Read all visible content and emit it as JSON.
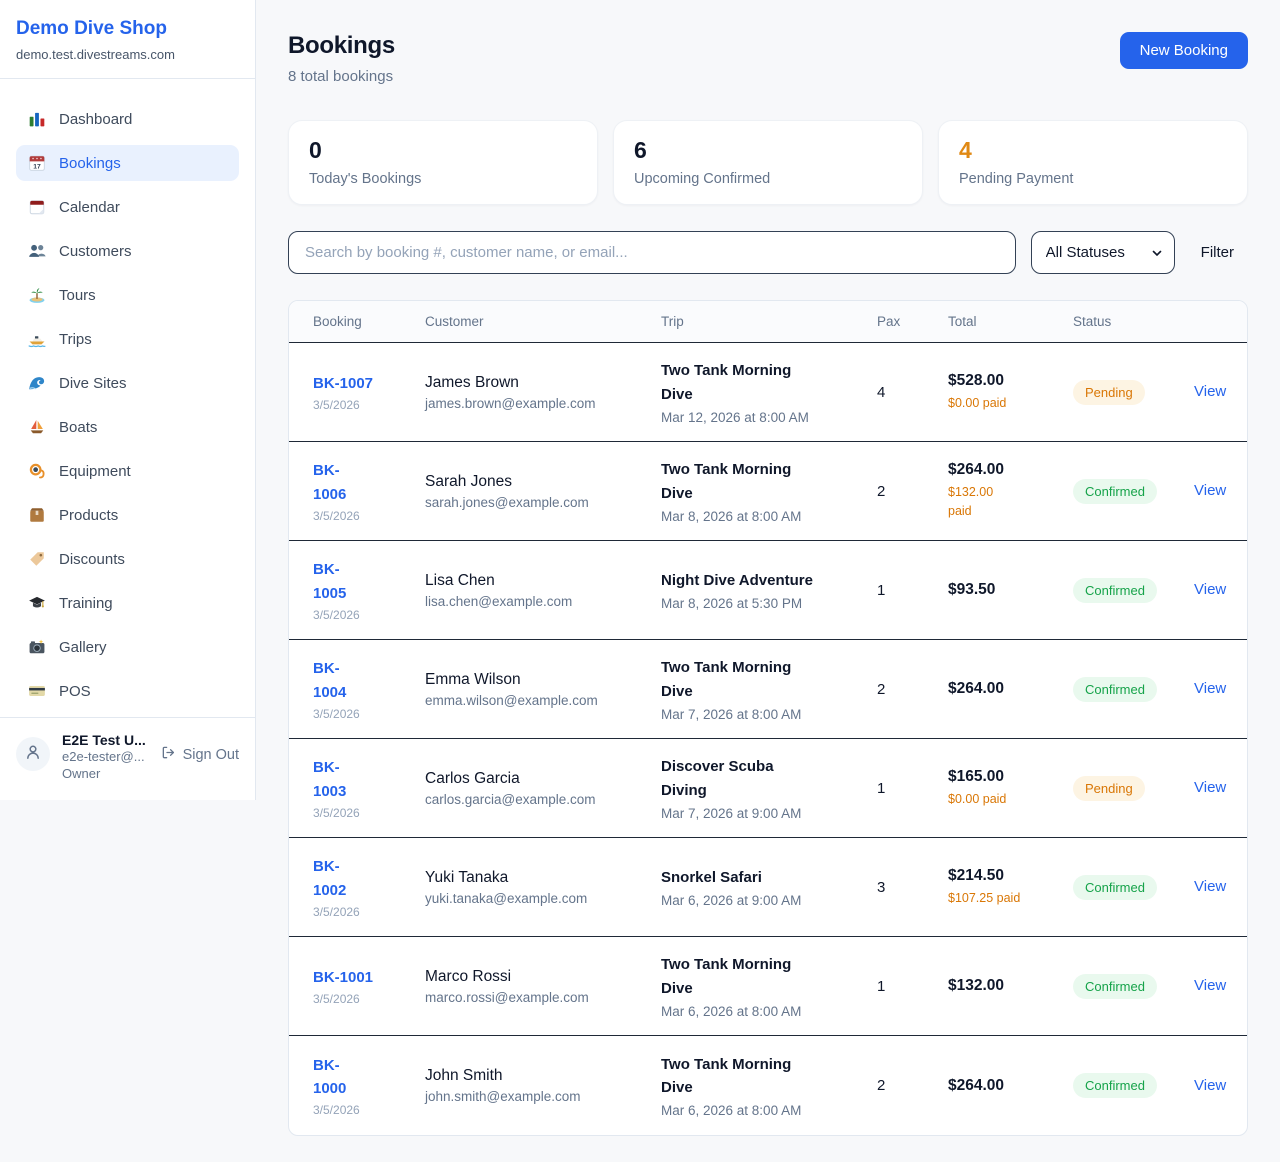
{
  "sidebar": {
    "brand": "Demo Dive Shop",
    "domain": "demo.test.divestreams.com",
    "items": [
      {
        "label": "Dashboard",
        "icon": "dashboard-icon",
        "active": false
      },
      {
        "label": "Bookings",
        "icon": "bookings-icon",
        "active": true
      },
      {
        "label": "Calendar",
        "icon": "calendar-icon",
        "active": false
      },
      {
        "label": "Customers",
        "icon": "customers-icon",
        "active": false
      },
      {
        "label": "Tours",
        "icon": "tours-icon",
        "active": false
      },
      {
        "label": "Trips",
        "icon": "trips-icon",
        "active": false
      },
      {
        "label": "Dive Sites",
        "icon": "dive-sites-icon",
        "active": false
      },
      {
        "label": "Boats",
        "icon": "boats-icon",
        "active": false
      },
      {
        "label": "Equipment",
        "icon": "equipment-icon",
        "active": false
      },
      {
        "label": "Products",
        "icon": "products-icon",
        "active": false
      },
      {
        "label": "Discounts",
        "icon": "discounts-icon",
        "active": false
      },
      {
        "label": "Training",
        "icon": "training-icon",
        "active": false
      },
      {
        "label": "Gallery",
        "icon": "gallery-icon",
        "active": false
      },
      {
        "label": "POS",
        "icon": "pos-icon",
        "active": false
      }
    ],
    "user": {
      "name": "E2E Test U...",
      "email": "e2e-tester@...",
      "role": "Owner",
      "sign_out_label": "Sign Out"
    }
  },
  "header": {
    "title": "Bookings",
    "subtitle": "8 total bookings",
    "new_booking_label": "New Booking"
  },
  "stats": [
    {
      "value": "0",
      "label": "Today's Bookings",
      "value_color": "#0f172a"
    },
    {
      "value": "6",
      "label": "Upcoming Confirmed",
      "value_color": "#0f172a"
    },
    {
      "value": "4",
      "label": "Pending Payment",
      "value_color": "#e08914"
    }
  ],
  "filters": {
    "search_placeholder": "Search by booking #, customer name, or email...",
    "status_selected": "All Statuses",
    "filter_label": "Filter"
  },
  "table": {
    "columns": [
      "Booking",
      "Customer",
      "Trip",
      "Pax",
      "Total",
      "Status"
    ],
    "view_label": "View",
    "rows": [
      {
        "id": "BK-1007",
        "id_wrap": false,
        "date": "3/5/2026",
        "customer": "James Brown",
        "email": "james.brown@example.com",
        "trip": "Two Tank Morning Dive",
        "trip_datetime": "Mar 12, 2026 at 8:00 AM",
        "pax": "4",
        "total": "$528.00",
        "paid": "$0.00 paid",
        "paid_wrap": false,
        "status": "Pending"
      },
      {
        "id": "BK-1006",
        "id_wrap": true,
        "date": "3/5/2026",
        "customer": "Sarah Jones",
        "email": "sarah.jones@example.com",
        "trip": "Two Tank Morning Dive",
        "trip_datetime": "Mar 8, 2026 at 8:00 AM",
        "pax": "2",
        "total": "$264.00",
        "paid": "$132.00 paid",
        "paid_wrap": true,
        "status": "Confirmed"
      },
      {
        "id": "BK-1005",
        "id_wrap": true,
        "date": "3/5/2026",
        "customer": "Lisa Chen",
        "email": "lisa.chen@example.com",
        "trip": "Night Dive Adventure",
        "trip_datetime": "Mar 8, 2026 at 5:30 PM",
        "pax": "1",
        "total": "$93.50",
        "paid": "",
        "paid_wrap": false,
        "status": "Confirmed"
      },
      {
        "id": "BK-1004",
        "id_wrap": true,
        "date": "3/5/2026",
        "customer": "Emma Wilson",
        "email": "emma.wilson@example.com",
        "trip": "Two Tank Morning Dive",
        "trip_datetime": "Mar 7, 2026 at 8:00 AM",
        "pax": "2",
        "total": "$264.00",
        "paid": "",
        "paid_wrap": false,
        "status": "Confirmed"
      },
      {
        "id": "BK-1003",
        "id_wrap": true,
        "date": "3/5/2026",
        "customer": "Carlos Garcia",
        "email": "carlos.garcia@example.com",
        "trip": "Discover Scuba Diving",
        "trip_datetime": "Mar 7, 2026 at 9:00 AM",
        "pax": "1",
        "total": "$165.00",
        "paid": "$0.00 paid",
        "paid_wrap": false,
        "status": "Pending"
      },
      {
        "id": "BK-1002",
        "id_wrap": true,
        "date": "3/5/2026",
        "customer": "Yuki Tanaka",
        "email": "yuki.tanaka@example.com",
        "trip": "Snorkel Safari",
        "trip_datetime": "Mar 6, 2026 at 9:00 AM",
        "pax": "3",
        "total": "$214.50",
        "paid": "$107.25 paid",
        "paid_wrap": false,
        "status": "Confirmed"
      },
      {
        "id": "BK-1001",
        "id_wrap": false,
        "date": "3/5/2026",
        "customer": "Marco Rossi",
        "email": "marco.rossi@example.com",
        "trip": "Two Tank Morning Dive",
        "trip_datetime": "Mar 6, 2026 at 8:00 AM",
        "pax": "1",
        "total": "$132.00",
        "paid": "",
        "paid_wrap": false,
        "status": "Confirmed"
      },
      {
        "id": "BK-1000",
        "id_wrap": true,
        "date": "3/5/2026",
        "customer": "John Smith",
        "email": "john.smith@example.com",
        "trip": "Two Tank Morning Dive",
        "trip_datetime": "Mar 6, 2026 at 8:00 AM",
        "pax": "2",
        "total": "$264.00",
        "paid": "",
        "paid_wrap": false,
        "status": "Confirmed"
      }
    ]
  },
  "colors": {
    "accent": "#2563eb",
    "link": "#2563eb",
    "paid_amount": "#d97706",
    "status": {
      "Pending": {
        "text": "#d97706",
        "bg": "#fdf4e3"
      },
      "Confirmed": {
        "text": "#16a34a",
        "bg": "#e9f9ee"
      }
    }
  }
}
